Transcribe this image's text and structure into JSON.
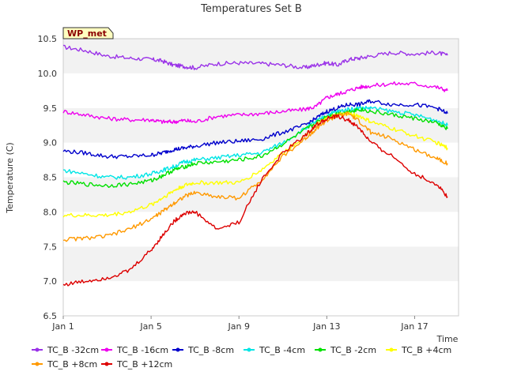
{
  "chart_data": {
    "type": "line",
    "title": "Temperatures Set B",
    "xlabel": "Time",
    "ylabel": "Temperature (C)",
    "badge": "WP_met",
    "xlim": [
      0,
      18
    ],
    "ylim": [
      6.5,
      10.5
    ],
    "yticks": [
      6.5,
      7.0,
      7.5,
      8.0,
      8.5,
      9.0,
      9.5,
      10.0,
      10.5
    ],
    "ytick_labels": [
      "6.5",
      "7.0",
      "7.5",
      "8.0",
      "8.5",
      "9.0",
      "9.5",
      "10.0",
      "10.5"
    ],
    "xticks": [
      0,
      4,
      8,
      12,
      16
    ],
    "xtick_labels": [
      "Jan 1",
      "Jan 5",
      "Jan 9",
      "Jan 13",
      "Jan 17"
    ],
    "x": [
      0,
      1,
      2,
      3,
      4,
      4.5,
      5,
      5.5,
      6,
      7,
      8,
      9,
      10,
      11,
      11.5,
      12,
      12.5,
      13,
      13.5,
      14,
      15,
      16,
      17,
      17.5
    ],
    "grid": "horizontal bands",
    "legend_position": "bottom",
    "series": [
      {
        "name": "TC_B -32cm",
        "color": "#9a32e8",
        "values": [
          10.38,
          10.33,
          10.25,
          10.22,
          10.2,
          10.18,
          10.12,
          10.1,
          10.08,
          10.14,
          10.15,
          10.14,
          10.12,
          10.08,
          10.12,
          10.15,
          10.12,
          10.2,
          10.22,
          10.25,
          10.3,
          10.28,
          10.3,
          10.26
        ]
      },
      {
        "name": "TC_B -16cm",
        "color": "#ee00ee",
        "values": [
          9.45,
          9.4,
          9.35,
          9.33,
          9.33,
          9.3,
          9.3,
          9.32,
          9.3,
          9.38,
          9.4,
          9.42,
          9.45,
          9.48,
          9.52,
          9.65,
          9.7,
          9.75,
          9.8,
          9.82,
          9.85,
          9.85,
          9.8,
          9.75
        ]
      },
      {
        "name": "TC_B -8cm",
        "color": "#0000cc",
        "values": [
          8.88,
          8.85,
          8.8,
          8.8,
          8.82,
          8.85,
          8.9,
          8.92,
          8.95,
          9.0,
          9.02,
          9.05,
          9.15,
          9.25,
          9.35,
          9.45,
          9.5,
          9.55,
          9.55,
          9.6,
          9.55,
          9.55,
          9.5,
          9.42
        ]
      },
      {
        "name": "TC_B -4cm",
        "color": "#00e5e5",
        "values": [
          8.6,
          8.55,
          8.5,
          8.5,
          8.55,
          8.6,
          8.65,
          8.72,
          8.75,
          8.78,
          8.82,
          8.85,
          9.0,
          9.2,
          9.3,
          9.4,
          9.45,
          9.48,
          9.5,
          9.5,
          9.45,
          9.4,
          9.32,
          9.25
        ]
      },
      {
        "name": "TC_B -2cm",
        "color": "#00e000",
        "values": [
          8.43,
          8.4,
          8.38,
          8.4,
          8.45,
          8.52,
          8.6,
          8.65,
          8.7,
          8.72,
          8.75,
          8.8,
          8.98,
          9.18,
          9.28,
          9.38,
          9.42,
          9.45,
          9.48,
          9.45,
          9.4,
          9.35,
          9.28,
          9.2
        ]
      },
      {
        "name": "TC_B +4cm",
        "color": "#ffff00",
        "values": [
          7.95,
          7.95,
          7.95,
          8.0,
          8.1,
          8.2,
          8.3,
          8.38,
          8.42,
          8.42,
          8.42,
          8.6,
          8.85,
          9.1,
          9.25,
          9.35,
          9.4,
          9.42,
          9.38,
          9.3,
          9.2,
          9.1,
          9.0,
          8.92
        ]
      },
      {
        "name": "TC_B +8cm",
        "color": "#ff9900",
        "values": [
          7.6,
          7.62,
          7.65,
          7.75,
          7.9,
          8.0,
          8.12,
          8.22,
          8.28,
          8.22,
          8.2,
          8.45,
          8.8,
          9.05,
          9.2,
          9.32,
          9.38,
          9.42,
          9.3,
          9.15,
          9.05,
          8.9,
          8.78,
          8.7
        ]
      },
      {
        "name": "TC_B +12cm",
        "color": "#dd0000",
        "values": [
          6.95,
          7.0,
          7.05,
          7.15,
          7.45,
          7.65,
          7.85,
          7.98,
          8.0,
          7.75,
          7.85,
          8.45,
          8.85,
          9.1,
          9.25,
          9.35,
          9.38,
          9.32,
          9.2,
          9.0,
          8.8,
          8.55,
          8.4,
          8.22
        ]
      }
    ]
  }
}
